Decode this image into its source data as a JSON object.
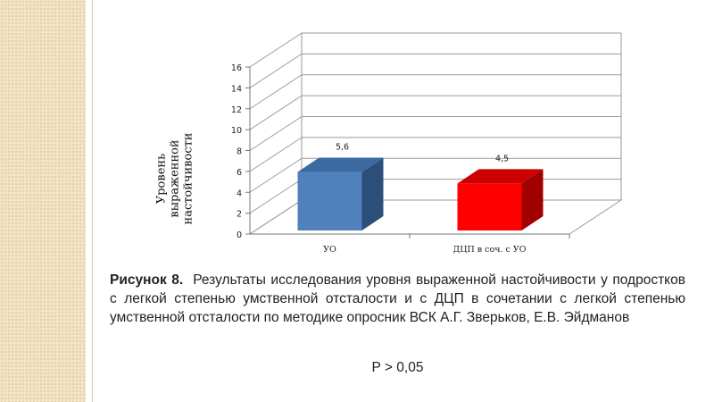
{
  "chart_data": {
    "type": "bar",
    "categories": [
      "УО",
      "ДЦП в соч. с УО"
    ],
    "values": [
      5.6,
      4.5
    ],
    "value_labels": [
      "5,6",
      "4,5"
    ],
    "ylabel_lines": [
      "Уровень",
      "выраженной",
      "настойчивости"
    ],
    "ylim": [
      0,
      16
    ],
    "yticks": [
      0,
      2,
      4,
      6,
      8,
      10,
      12,
      14,
      16
    ],
    "grid": true,
    "legend": "none",
    "colors": {
      "front": [
        "#4f81bd",
        "#ff0000"
      ],
      "top": [
        "#3b6aa0",
        "#cc0000"
      ],
      "side": [
        "#2c4f7a",
        "#a00000"
      ]
    }
  },
  "caption": {
    "label": "Рисунок 8.",
    "text": "Результаты исследования уровня выраженной настойчивости у подростков с легкой степенью умственной отсталости и с ДЦП в сочетании с легкой степенью умственной отсталости по методике опросник ВСК А.Г. Зверьков, Е.В. Эйдманов",
    "pvalue": "P > 0,05"
  }
}
